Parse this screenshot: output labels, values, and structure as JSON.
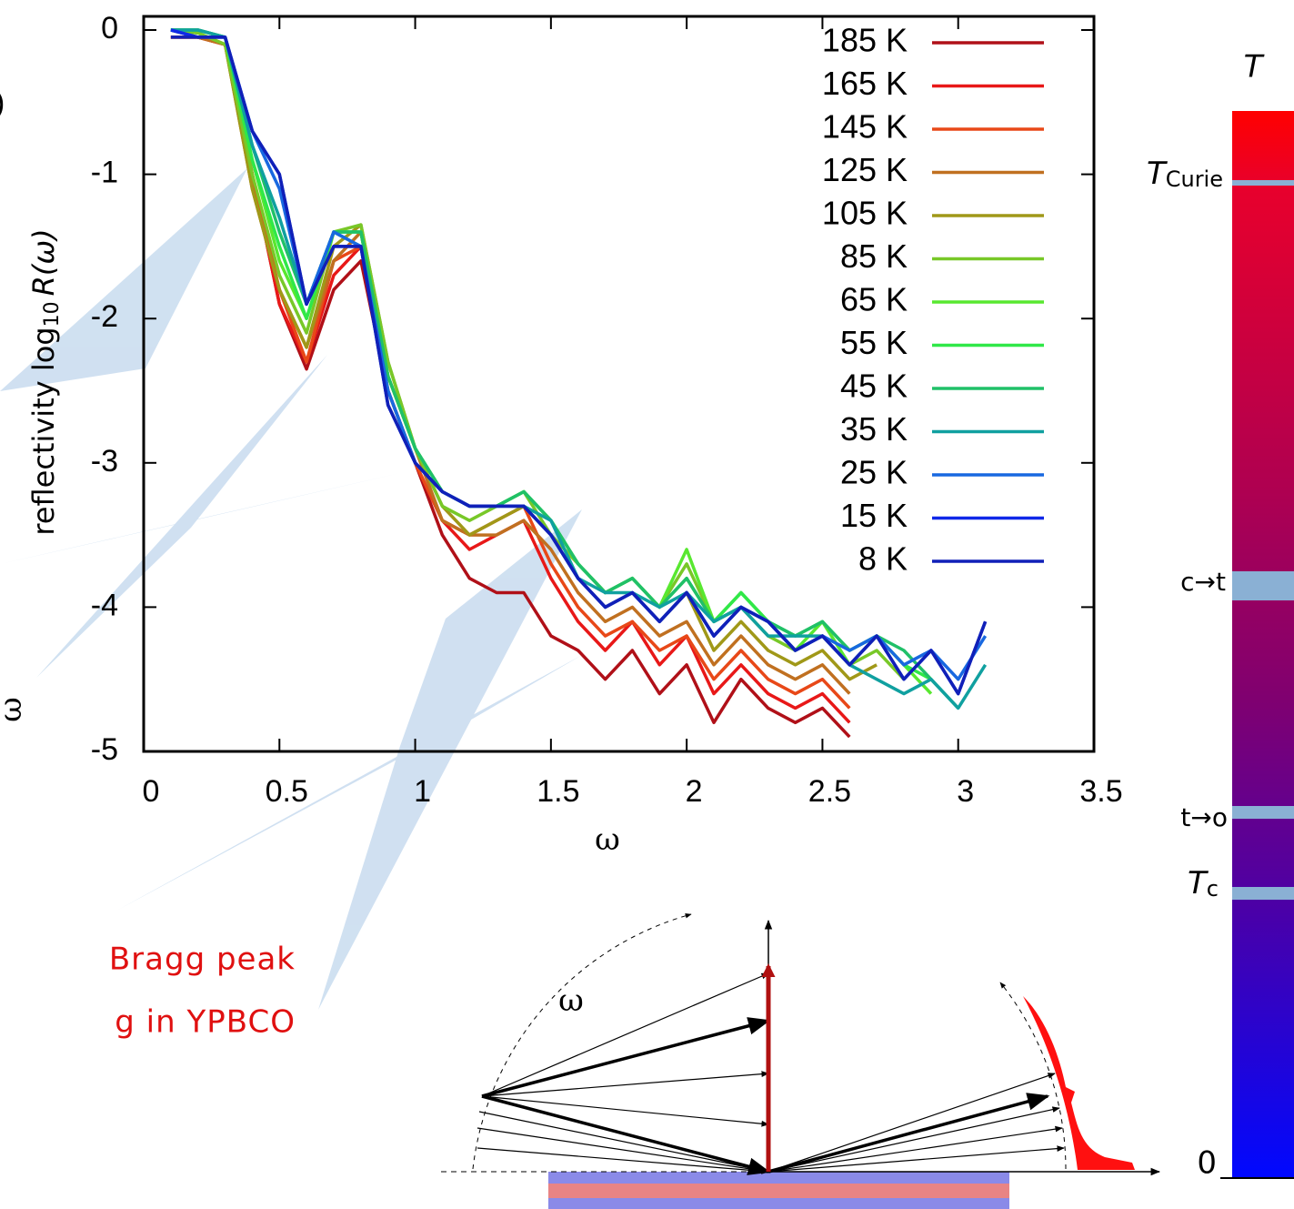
{
  "chart_data": {
    "type": "line",
    "ylabel": "reflectivity log",
    "ylabel_sub": "10",
    "ylabel_tail": "R(ω)",
    "xlabel": "ω",
    "xlim": [
      0,
      3.5
    ],
    "ylim": [
      -5,
      0
    ],
    "xticks": [
      0,
      0.5,
      1,
      1.5,
      2,
      2.5,
      3,
      3.5
    ],
    "yticks": [
      -5,
      -4,
      -3,
      -2,
      -1,
      0
    ],
    "x": [
      0.1,
      0.2,
      0.3,
      0.4,
      0.5,
      0.6,
      0.7,
      0.8,
      0.9,
      1.0,
      1.1,
      1.2,
      1.3,
      1.4,
      1.5,
      1.6,
      1.7,
      1.8,
      1.9,
      2.0,
      2.1,
      2.2,
      2.3,
      2.4,
      2.5,
      2.6,
      2.7,
      2.8,
      2.9,
      3.0,
      3.1
    ],
    "series": [
      {
        "name": "185 K",
        "color": "#b01018",
        "values": [
          -0.05,
          -0.05,
          -0.1,
          -1.0,
          -1.9,
          -2.35,
          -1.8,
          -1.6,
          -2.5,
          -3.0,
          -3.5,
          -3.8,
          -3.9,
          -3.9,
          -4.2,
          -4.3,
          -4.5,
          -4.3,
          -4.6,
          -4.4,
          -4.8,
          -4.5,
          -4.7,
          -4.8,
          -4.7,
          -4.9,
          null,
          null,
          null,
          null,
          null
        ]
      },
      {
        "name": "165 K",
        "color": "#e81818",
        "values": [
          -0.05,
          -0.05,
          -0.1,
          -1.0,
          -1.9,
          -2.3,
          -1.7,
          -1.5,
          -2.5,
          -3.0,
          -3.4,
          -3.6,
          -3.5,
          -3.4,
          -3.8,
          -4.1,
          -4.3,
          -4.1,
          -4.4,
          -4.2,
          -4.6,
          -4.4,
          -4.6,
          -4.7,
          -4.6,
          -4.8,
          null,
          null,
          null,
          null,
          null
        ]
      },
      {
        "name": "145 K",
        "color": "#e84818",
        "values": [
          -0.05,
          -0.05,
          -0.1,
          -1.0,
          -1.8,
          -2.3,
          -1.6,
          -1.5,
          -2.5,
          -3.0,
          -3.4,
          -3.5,
          -3.4,
          -3.3,
          -3.7,
          -4.0,
          -4.2,
          -4.1,
          -4.3,
          -4.2,
          -4.5,
          -4.3,
          -4.5,
          -4.6,
          -4.5,
          -4.7,
          null,
          null,
          null,
          null,
          null
        ]
      },
      {
        "name": "125 K",
        "color": "#c07020",
        "values": [
          0,
          -0.05,
          -0.1,
          -1.1,
          -1.8,
          -2.2,
          -1.6,
          -1.4,
          -2.4,
          -2.9,
          -3.4,
          -3.5,
          -3.5,
          -3.4,
          -3.6,
          -3.9,
          -4.1,
          -4.0,
          -4.2,
          -4.1,
          -4.4,
          -4.2,
          -4.4,
          -4.5,
          -4.4,
          -4.6,
          null,
          null,
          null,
          null,
          null
        ]
      },
      {
        "name": "105 K",
        "color": "#a09818",
        "values": [
          0,
          -0.02,
          -0.1,
          -1.1,
          -1.8,
          -2.2,
          -1.5,
          -1.35,
          -2.3,
          -2.9,
          -3.3,
          -3.5,
          -3.4,
          -3.3,
          -3.5,
          -3.8,
          -4.0,
          -3.9,
          -4.1,
          -3.9,
          -4.3,
          -4.1,
          -4.3,
          -4.4,
          -4.3,
          -4.5,
          -4.4,
          null,
          null,
          null,
          null
        ]
      },
      {
        "name": "85 K",
        "color": "#78c828",
        "values": [
          0,
          -0.02,
          -0.1,
          -1.0,
          -1.7,
          -2.1,
          -1.4,
          -1.35,
          -2.3,
          -2.9,
          -3.3,
          -3.4,
          -3.3,
          -3.2,
          -3.5,
          -3.7,
          -3.9,
          -3.8,
          -4.0,
          -3.7,
          -4.1,
          -4.0,
          -4.2,
          -4.3,
          -4.2,
          -4.4,
          -4.3,
          -4.5,
          null,
          null,
          null
        ]
      },
      {
        "name": "65 K",
        "color": "#58e830",
        "values": [
          0,
          0,
          -0.05,
          -0.9,
          -1.6,
          -2.0,
          -1.4,
          -1.4,
          -2.4,
          -2.9,
          -3.2,
          -3.3,
          -3.3,
          -3.2,
          -3.4,
          -3.7,
          -3.9,
          -3.8,
          -4.0,
          -3.6,
          -4.1,
          -3.9,
          -4.1,
          -4.3,
          -4.1,
          -4.4,
          -4.2,
          -4.4,
          -4.6,
          null,
          null
        ]
      },
      {
        "name": "55 K",
        "color": "#30e848",
        "values": [
          0,
          0,
          -0.05,
          -0.9,
          -1.5,
          -2.0,
          -1.4,
          -1.4,
          -2.4,
          -2.9,
          -3.2,
          -3.3,
          -3.3,
          -3.2,
          -3.4,
          -3.7,
          -3.9,
          -3.8,
          -4.0,
          -3.8,
          -4.1,
          -3.9,
          -4.1,
          -4.2,
          -4.1,
          -4.3,
          -4.2,
          -4.4,
          -4.5,
          null,
          null
        ]
      },
      {
        "name": "45 K",
        "color": "#20c068",
        "values": [
          0,
          0,
          -0.05,
          -0.8,
          -1.4,
          -1.9,
          -1.4,
          -1.4,
          -2.4,
          -2.9,
          -3.2,
          -3.3,
          -3.3,
          -3.2,
          -3.4,
          -3.7,
          -3.9,
          -3.8,
          -4.0,
          -3.8,
          -4.1,
          -4.0,
          -4.1,
          -4.2,
          -4.1,
          -4.3,
          -4.2,
          -4.3,
          -4.5,
          -4.7,
          null
        ]
      },
      {
        "name": "35 K",
        "color": "#10a0a0",
        "values": [
          0,
          0,
          -0.05,
          -0.8,
          -1.3,
          -1.9,
          -1.4,
          -1.5,
          -2.5,
          -3.0,
          -3.2,
          -3.3,
          -3.3,
          -3.3,
          -3.4,
          -3.8,
          -3.9,
          -3.9,
          -4.0,
          -3.9,
          -4.1,
          -4.0,
          -4.2,
          -4.2,
          -4.2,
          -4.4,
          -4.5,
          -4.6,
          -4.5,
          -4.7,
          -4.4
        ]
      },
      {
        "name": "25 K",
        "color": "#1868e0",
        "values": [
          0,
          -0.05,
          -0.05,
          -0.7,
          -1.1,
          -1.9,
          -1.4,
          -1.5,
          -2.5,
          -3.0,
          -3.2,
          -3.3,
          -3.3,
          -3.3,
          -3.5,
          -3.8,
          -4.0,
          -3.9,
          -4.1,
          -3.9,
          -4.2,
          -4.0,
          -4.1,
          -4.3,
          -4.2,
          -4.3,
          -4.2,
          -4.4,
          -4.3,
          -4.5,
          -4.2
        ]
      },
      {
        "name": "15 K",
        "color": "#1028e8",
        "values": [
          0,
          -0.05,
          -0.05,
          -0.7,
          -1.0,
          -1.9,
          -1.5,
          -1.5,
          -2.6,
          -3.0,
          -3.2,
          -3.3,
          -3.3,
          -3.3,
          -3.5,
          -3.8,
          -4.0,
          -3.9,
          -4.1,
          -3.9,
          -4.2,
          -4.0,
          -4.1,
          -4.3,
          -4.2,
          -4.4,
          -4.2,
          -4.5,
          -4.3,
          -4.6,
          -4.1
        ]
      },
      {
        "name": "8 K",
        "color": "#1020b8",
        "values": [
          -0.05,
          -0.05,
          -0.05,
          -0.7,
          -1.0,
          -1.9,
          -1.5,
          -1.5,
          -2.6,
          -3.0,
          -3.2,
          -3.3,
          -3.3,
          -3.3,
          -3.5,
          -3.8,
          -4.0,
          -3.9,
          -4.1,
          -3.9,
          -4.2,
          -4.0,
          -4.1,
          -4.3,
          -4.2,
          -4.4,
          -4.2,
          -4.5,
          -4.3,
          -4.6,
          -4.1
        ]
      }
    ]
  },
  "left_fragments": [
    ")",
    "ω"
  ],
  "annotation_lines": [
    "Bragg peak",
    "g in YPBCO"
  ],
  "diagram_label": "ω",
  "colorbar": {
    "title": "T",
    "curie_symbol": "T",
    "curie_sub": "Curie",
    "c_to_t": "c→t",
    "t_to_o": "t→o",
    "tc_symbol": "T",
    "tc_sub": "c",
    "zero": "0"
  }
}
